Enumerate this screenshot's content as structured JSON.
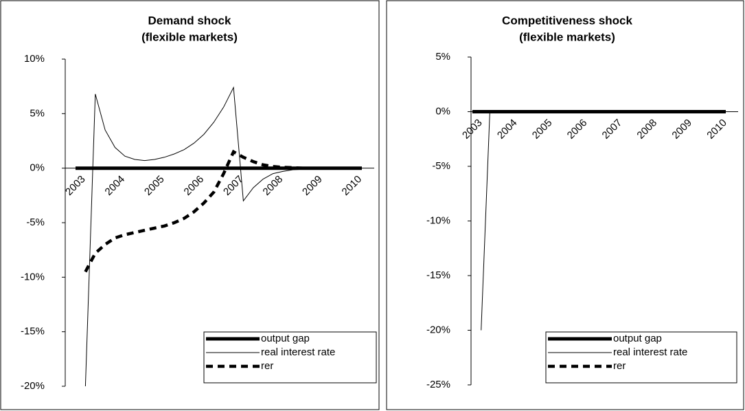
{
  "chart_data": [
    {
      "type": "line",
      "title": "Demand shock",
      "subtitle": "(flexible markets)",
      "categories": [
        "2003",
        null,
        null,
        null,
        "2004",
        null,
        null,
        null,
        "2005",
        null,
        null,
        null,
        "2006",
        null,
        null,
        null,
        "2007",
        null,
        null,
        null,
        "2008",
        null,
        null,
        null,
        "2009",
        null,
        null,
        null,
        "2010",
        null
      ],
      "ylim": [
        -20,
        10
      ],
      "yticks": [
        {
          "value": -20,
          "label": "-20%"
        },
        {
          "value": -15,
          "label": "-15%"
        },
        {
          "value": -10,
          "label": "-10%"
        },
        {
          "value": -5,
          "label": "-5%"
        },
        {
          "value": 0,
          "label": "0%"
        },
        {
          "value": 5,
          "label": "5%"
        },
        {
          "value": 10,
          "label": "10%"
        }
      ],
      "legend": "lower right",
      "series": [
        {
          "name": "output gap",
          "color": "#000000",
          "values": [
            0,
            0,
            0,
            0,
            0,
            0,
            0,
            0,
            0,
            0,
            0,
            0,
            0,
            0,
            0,
            0,
            0,
            0,
            0,
            0,
            0,
            0,
            0,
            0,
            0,
            0,
            0,
            0,
            0,
            0
          ]
        },
        {
          "name": "real interest rate",
          "color": "#000000",
          "values": [
            null,
            -20,
            6.8,
            3.5,
            1.9,
            1.1,
            0.8,
            0.7,
            0.8,
            1.0,
            1.3,
            1.7,
            2.3,
            3.1,
            4.2,
            5.6,
            7.4,
            -3.0,
            -1.8,
            -1.0,
            -0.5,
            -0.3,
            -0.15,
            -0.1,
            -0.05,
            0,
            0,
            0,
            0,
            0
          ]
        },
        {
          "name": "rer",
          "color": "#000000",
          "values": [
            null,
            -9.5,
            -7.8,
            -7.0,
            -6.4,
            -6.1,
            -5.9,
            -5.7,
            -5.5,
            -5.3,
            -5.0,
            -4.6,
            -4.0,
            -3.2,
            -2.2,
            -0.5,
            1.5,
            1.0,
            0.6,
            0.3,
            0.15,
            0.08,
            0.04,
            0,
            0,
            0,
            0,
            0,
            0,
            0
          ]
        }
      ]
    },
    {
      "type": "line",
      "title": "Competitiveness shock",
      "subtitle": "(flexible markets)",
      "categories": [
        "2003",
        null,
        null,
        null,
        "2004",
        null,
        null,
        null,
        "2005",
        null,
        null,
        null,
        "2006",
        null,
        null,
        null,
        "2007",
        null,
        null,
        null,
        "2008",
        null,
        null,
        null,
        "2009",
        null,
        null,
        null,
        "2010",
        null
      ],
      "ylim": [
        -25,
        5
      ],
      "yticks": [
        {
          "value": -25,
          "label": "-25%"
        },
        {
          "value": -20,
          "label": "-20%"
        },
        {
          "value": -15,
          "label": "-15%"
        },
        {
          "value": -10,
          "label": "-10%"
        },
        {
          "value": -5,
          "label": "-5%"
        },
        {
          "value": 0,
          "label": "0%"
        },
        {
          "value": 5,
          "label": "5%"
        }
      ],
      "legend": "lower right",
      "series": [
        {
          "name": "output gap",
          "color": "#000000",
          "values": [
            0,
            0,
            0,
            0,
            0,
            0,
            0,
            0,
            0,
            0,
            0,
            0,
            0,
            0,
            0,
            0,
            0,
            0,
            0,
            0,
            0,
            0,
            0,
            0,
            0,
            0,
            0,
            0,
            0,
            0
          ]
        },
        {
          "name": "real interest rate",
          "color": "#000000",
          "values": [
            null,
            -20,
            0,
            0,
            0,
            0,
            0,
            0,
            0,
            0,
            0,
            0,
            0,
            0,
            0,
            0,
            0,
            0,
            0,
            0,
            0,
            0,
            0,
            0,
            0,
            0,
            0,
            0,
            0,
            0
          ]
        },
        {
          "name": "rer",
          "color": "#000000",
          "values": [
            null,
            0,
            0,
            0,
            0,
            0,
            0,
            0,
            0,
            0,
            0,
            0,
            0,
            0,
            0,
            0,
            0,
            0,
            0,
            0,
            0,
            0,
            0,
            0,
            0,
            0,
            0,
            0,
            0,
            0
          ]
        }
      ]
    }
  ]
}
